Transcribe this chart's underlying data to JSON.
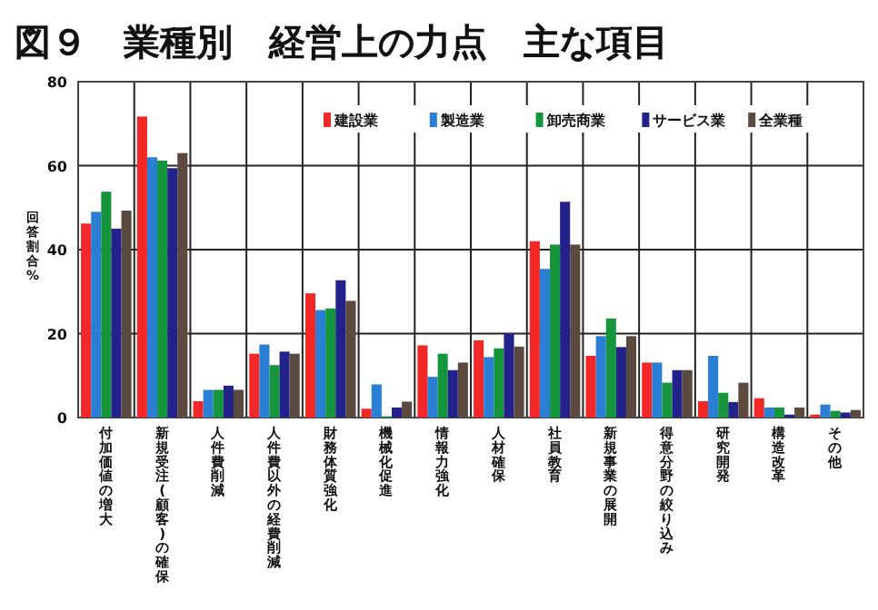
{
  "chart_data": {
    "type": "bar",
    "title": "図９　業種別　経営上の力点　主な項目",
    "ylabel": "回答割合%",
    "categories": [
      "付加価値の増大",
      "新規受注(顧客)の確保",
      "人件費削減",
      "人件費以外の経費削減",
      "財務体質強化",
      "機械化促進",
      "情報力強化",
      "人材確保",
      "社員教育",
      "新規事業の展開",
      "得意分野の絞り込み",
      "研究開発",
      "構造改革",
      "その他"
    ],
    "series": [
      {
        "name": "建設業",
        "color": "#f22828",
        "values": [
          46.2,
          71.7,
          3.9,
          15.2,
          29.6,
          2.1,
          17.2,
          18.4,
          42,
          14.7,
          13.1,
          3.9,
          4.6,
          0.7
        ]
      },
      {
        "name": "製造業",
        "color": "#2a7fd4",
        "values": [
          49,
          62,
          6.6,
          17.4,
          25.6,
          7.9,
          9.7,
          14.4,
          35.4,
          19.4,
          13.1,
          14.7,
          2.4,
          3.1
        ]
      },
      {
        "name": "卸売商業",
        "color": "#16963c",
        "values": [
          53.8,
          61.2,
          6.6,
          12.5,
          26,
          0.3,
          15.2,
          16.5,
          41.2,
          23.6,
          8.3,
          5.9,
          2.4,
          1.6
        ]
      },
      {
        "name": "サービス業",
        "color": "#22228a",
        "values": [
          45,
          59.4,
          7.6,
          15.7,
          32.7,
          2.4,
          11.3,
          20.1,
          51.4,
          16.8,
          11.3,
          3.7,
          0.7,
          1.2
        ]
      },
      {
        "name": "全業種",
        "color": "#5c4a40",
        "values": [
          49.3,
          63,
          6.6,
          15.2,
          27.8,
          3.8,
          13.1,
          16.9,
          41.2,
          19.4,
          11.3,
          8.3,
          2.4,
          1.8
        ]
      }
    ],
    "ylim": [
      0,
      80
    ],
    "yticks": [
      0,
      20,
      40,
      60,
      80
    ],
    "grid": true,
    "legend": "top"
  }
}
